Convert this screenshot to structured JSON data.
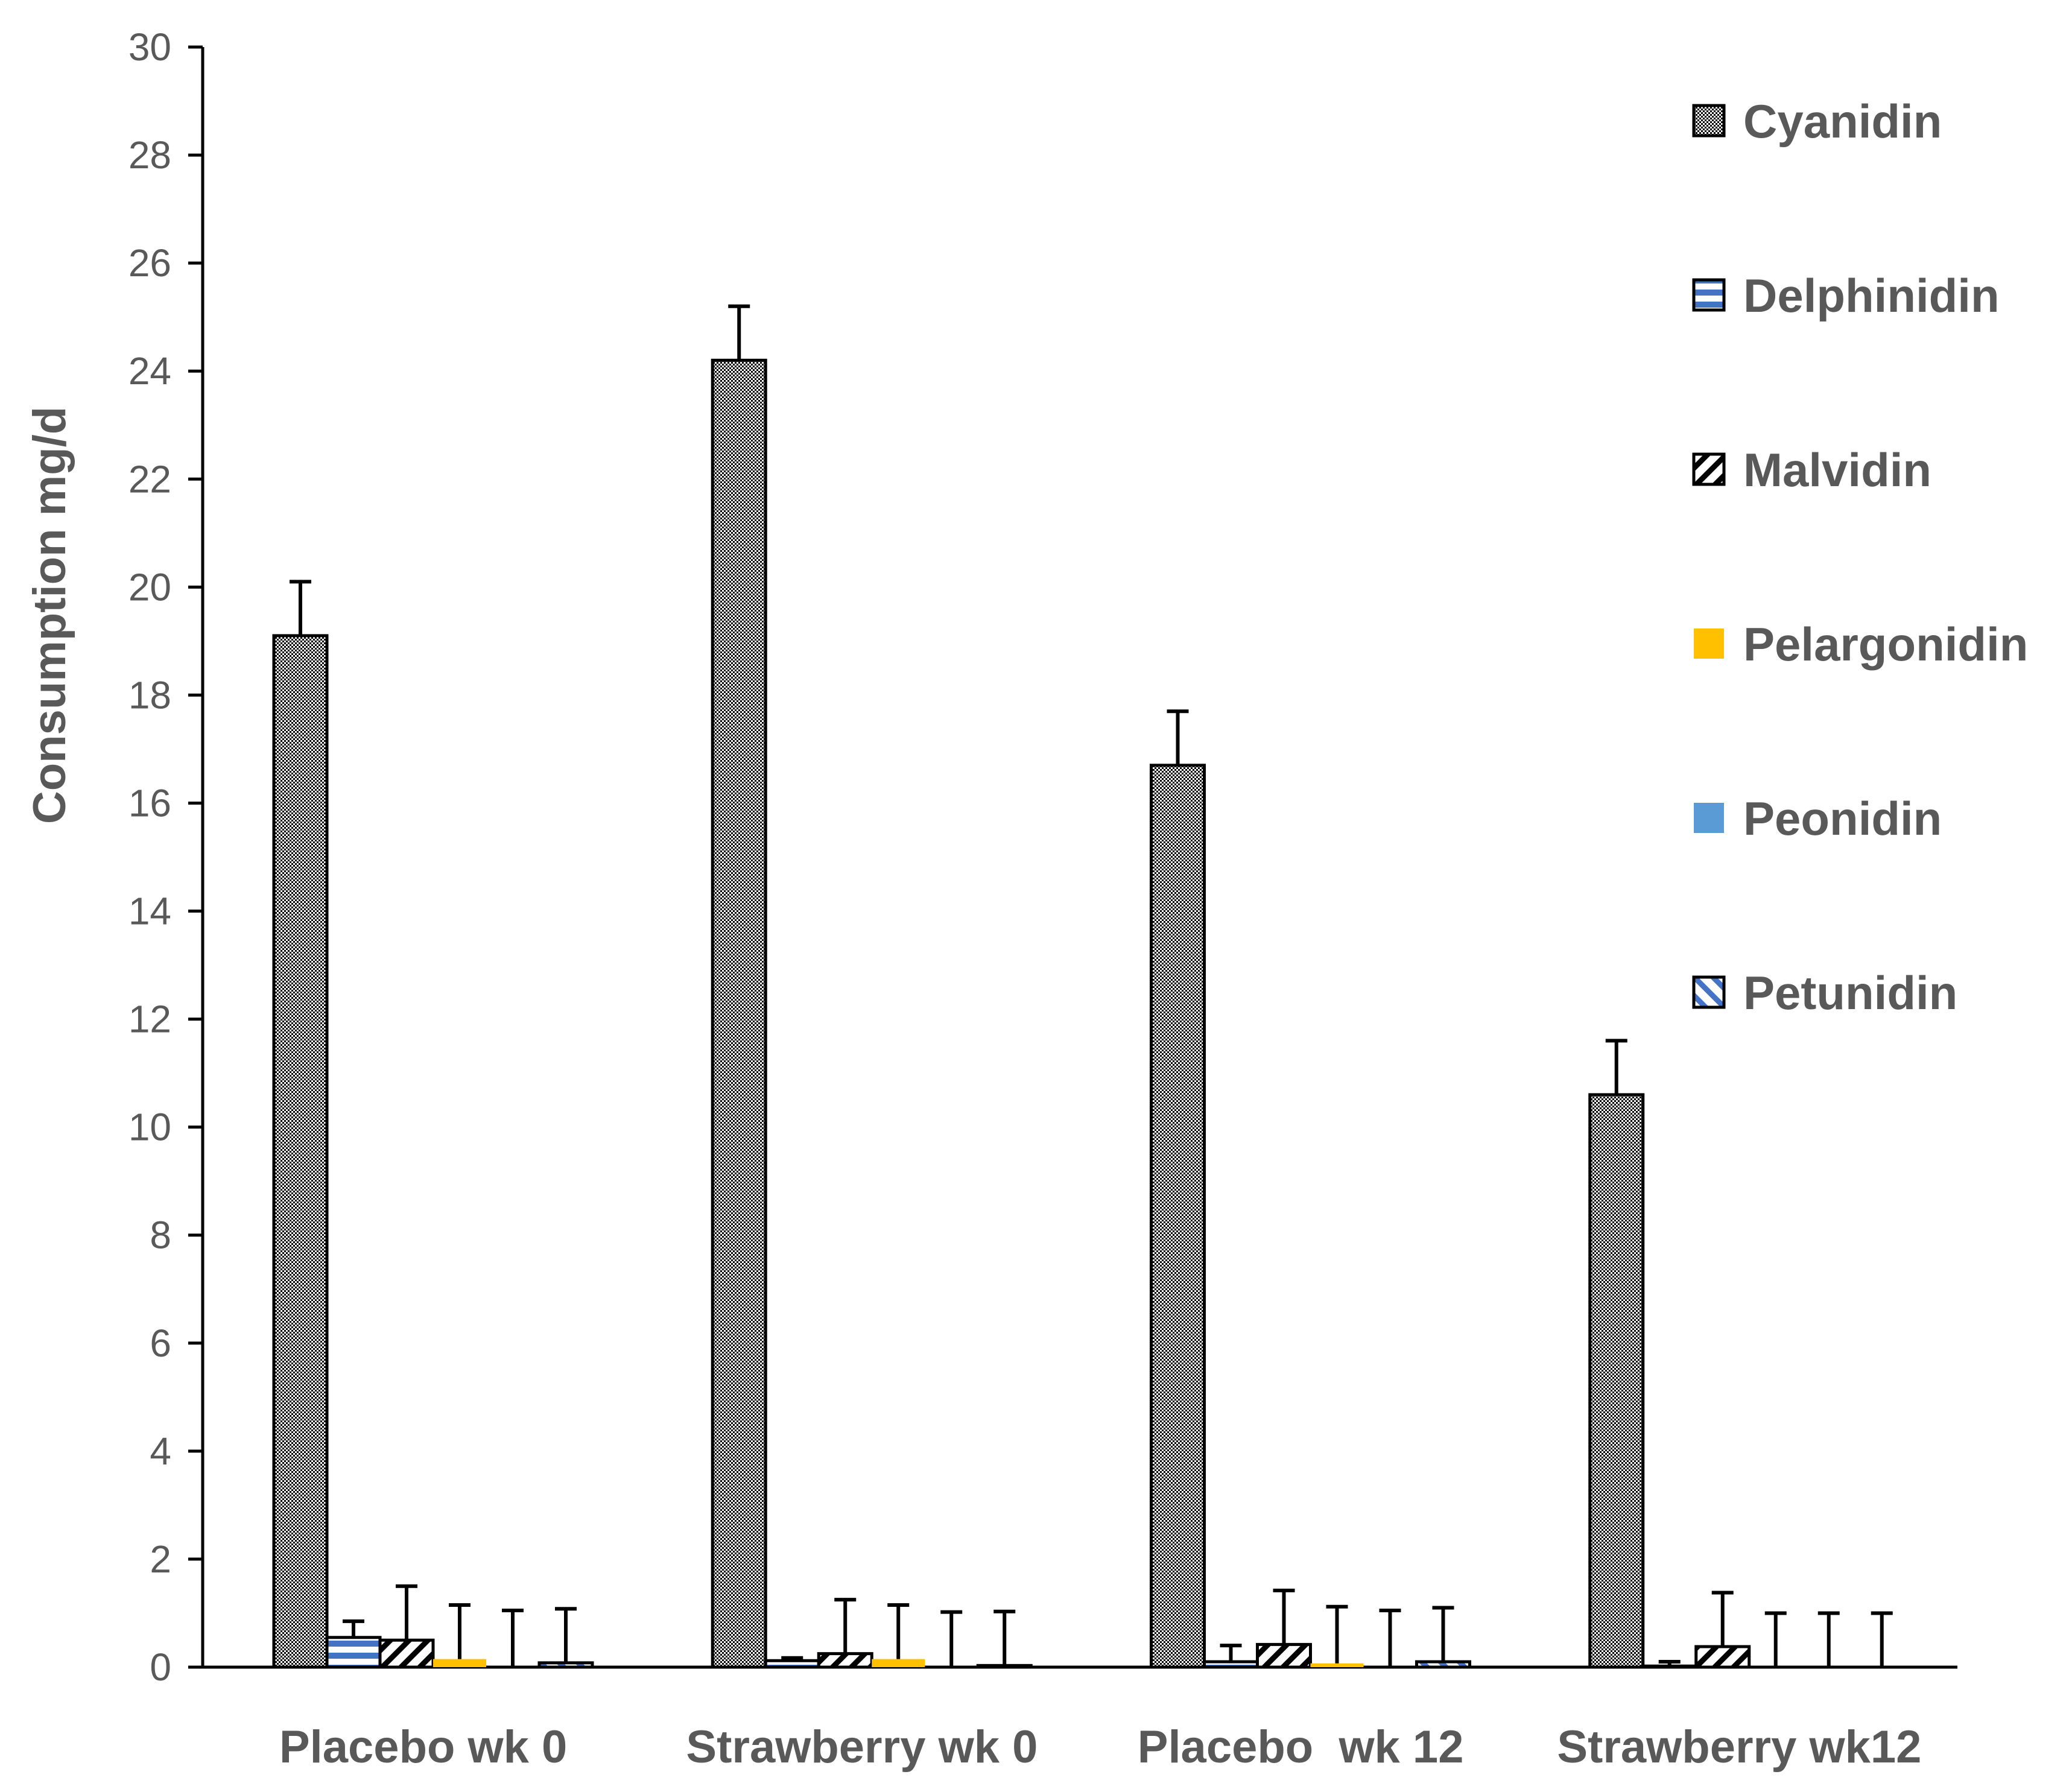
{
  "chart_data": {
    "type": "bar",
    "title": "",
    "xlabel": "",
    "ylabel": "Consumption mg/d",
    "ylim": [
      0,
      30
    ],
    "yticks": [
      0,
      2,
      4,
      6,
      8,
      10,
      12,
      14,
      16,
      18,
      20,
      22,
      24,
      26,
      28,
      30
    ],
    "categories": [
      "Placebo wk 0",
      "Strawberry wk 0",
      "Placebo  wk 12",
      "Strawberry wk12"
    ],
    "legend_position": "top-right",
    "series": [
      {
        "name": "Cyanidin",
        "pattern": "dots",
        "color": "#000000",
        "values": [
          19.1,
          24.2,
          16.7,
          10.6
        ],
        "errors": [
          1.0,
          1.0,
          1.0,
          1.0
        ]
      },
      {
        "name": "Delphinidin",
        "pattern": "hstripes",
        "color": "#4472C4",
        "values": [
          0.55,
          0.12,
          0.1,
          0.02
        ],
        "errors": [
          0.3,
          0.05,
          0.3,
          0.08
        ]
      },
      {
        "name": "Malvidin",
        "pattern": "diag-down",
        "color": "#000000",
        "values": [
          0.5,
          0.25,
          0.42,
          0.38
        ],
        "errors": [
          1.0,
          1.0,
          1.0,
          1.0
        ]
      },
      {
        "name": "Pelargonidin",
        "pattern": "solid",
        "color": "#FFC000",
        "values": [
          0.15,
          0.15,
          0.07,
          0.0
        ],
        "errors": [
          1.0,
          1.0,
          1.05,
          1.0
        ]
      },
      {
        "name": "Peonidin",
        "pattern": "solid",
        "color": "#5B9BD5",
        "values": [
          0.0,
          0.0,
          0.0,
          0.0
        ],
        "errors": [
          1.05,
          1.02,
          1.05,
          1.0
        ]
      },
      {
        "name": "Petunidin",
        "pattern": "diag-up",
        "color": "#4472C4",
        "values": [
          0.08,
          0.03,
          0.1,
          0.0
        ],
        "errors": [
          1.0,
          1.0,
          1.0,
          1.0
        ]
      }
    ]
  }
}
